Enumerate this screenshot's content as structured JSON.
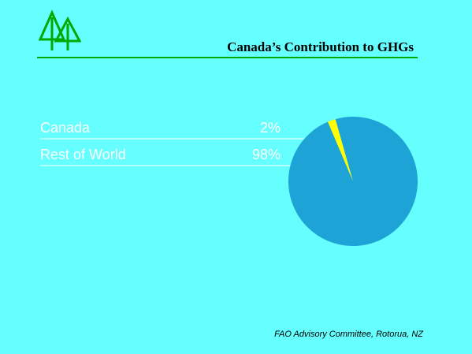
{
  "colors": {
    "background": "#66ffff",
    "accent": "#00aa00",
    "text": "#ffffff",
    "leader_line": "#ffffff"
  },
  "logo": {
    "icon": "twin-trees-icon"
  },
  "footer": {
    "text": "FAO Advisory Committee, Rotorua, NZ"
  },
  "chart_data": {
    "type": "pie",
    "title": "Canada’s Contribution to GHGs",
    "slices": [
      {
        "label": "Canada",
        "value_text": "2%",
        "value": 2,
        "color": "#ffff00"
      },
      {
        "label": "Rest of World",
        "value_text": "98%",
        "value": 98,
        "color": "#1ea3d7"
      }
    ],
    "legend": "left"
  }
}
